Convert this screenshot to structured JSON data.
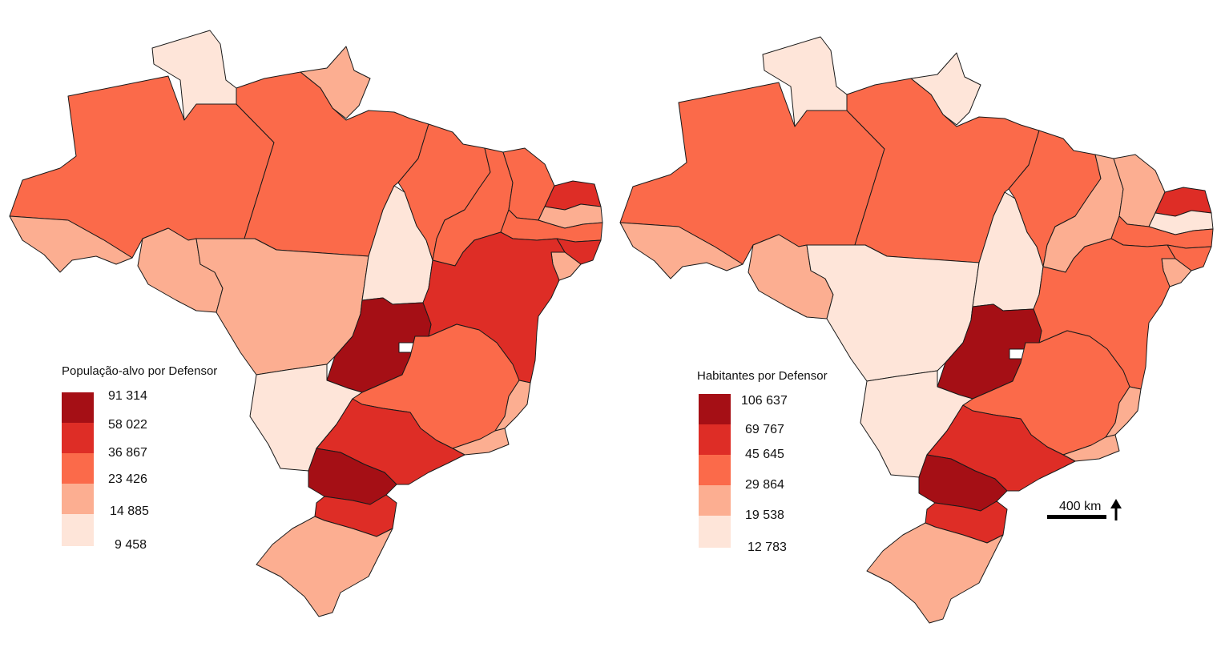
{
  "palette": {
    "c1": "#a50f15",
    "c2": "#de2d26",
    "c3": "#fb6a4a",
    "c4": "#fcae91",
    "c5": "#fee5d9",
    "white": "#ffffff"
  },
  "maps": [
    {
      "id": "left",
      "legend_title": "População-alvo por Defensor",
      "legend_labels": [
        "91 314",
        "58 022",
        "36 867",
        "23 426",
        "14 885",
        "9 458"
      ],
      "state_classes": {
        "AM": "c3",
        "RR": "c5",
        "AP": "c4",
        "PA": "c3",
        "AC": "c4",
        "RO": "c4",
        "MT": "c4",
        "TO": "c5",
        "MA": "c3",
        "PI": "c3",
        "CE": "c3",
        "RN": "c2",
        "PB": "c4",
        "PE": "c3",
        "AL": "c2",
        "SE": "c4",
        "BA": "c2",
        "GO": "c1",
        "DF": "white",
        "MG": "c3",
        "ES": "c4",
        "RJ": "c4",
        "MS": "c5",
        "SP": "c2",
        "PR": "c1",
        "SC": "c2",
        "RS": "c4"
      }
    },
    {
      "id": "right",
      "legend_title": "Habitantes por Defensor",
      "legend_labels": [
        "106 637",
        "69 767",
        "45 645",
        "29 864",
        "19 538",
        "12 783"
      ],
      "state_classes": {
        "AM": "c3",
        "RR": "c5",
        "AP": "c5",
        "PA": "c3",
        "AC": "c4",
        "RO": "c4",
        "MT": "c5",
        "TO": "c5",
        "MA": "c3",
        "PI": "c4",
        "CE": "c4",
        "RN": "c2",
        "PB": "c5",
        "PE": "c3",
        "AL": "c3",
        "SE": "c4",
        "BA": "c3",
        "GO": "c1",
        "DF": "white",
        "MG": "c3",
        "ES": "c4",
        "RJ": "c4",
        "MS": "c5",
        "SP": "c2",
        "PR": "c1",
        "SC": "c2",
        "RS": "c4"
      }
    }
  ],
  "scale_bar": {
    "label": "400 km"
  },
  "north_arrow": {
    "icon": "north-arrow-icon"
  }
}
